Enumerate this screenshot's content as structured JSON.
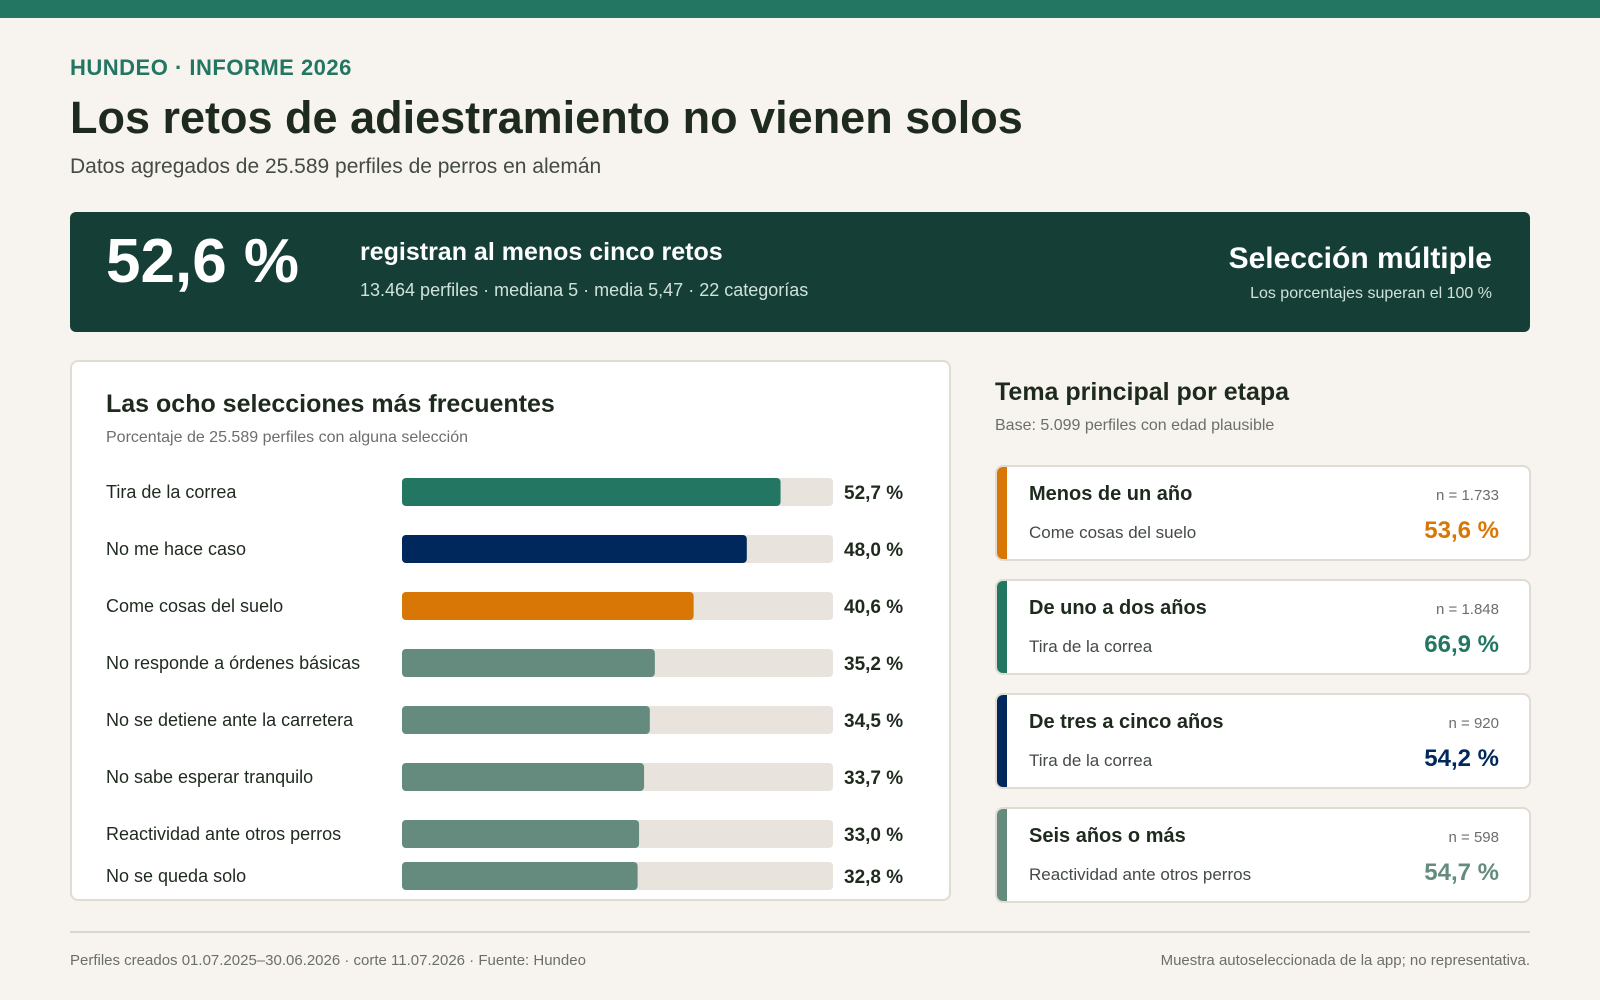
{
  "header": {
    "eyebrow": "HUNDEO · INFORME 2026",
    "title": "Los retos de adiestramiento no vienen solos",
    "subtitle": "Datos agregados de 25.589 perfiles de perros en alemán"
  },
  "banner": {
    "big_value": "52,6 %",
    "lead": "registran al menos cinco retos",
    "meta": "13.464 perfiles · mediana 5 · media 5,47 · 22 categorías",
    "right_title": "Selección múltiple",
    "right_sub": "Los porcentajes superan el 100 %"
  },
  "chart": {
    "title": "Las ocho selecciones más frecuentes",
    "subtitle": "Porcentaje de 25.589 perfiles con alguna selección"
  },
  "chart_data": {
    "type": "bar",
    "orientation": "horizontal",
    "title": "Las ocho selecciones más frecuentes",
    "subtitle": "Porcentaje de 25.589 perfiles con alguna selección",
    "categories": [
      "Tira de la correa",
      "No me hace caso",
      "Come cosas del suelo",
      "No responde a órdenes básicas",
      "No se detiene ante la carretera",
      "No sabe esperar tranquilo",
      "Reactividad ante otros perros",
      "No se queda solo"
    ],
    "values": [
      52.7,
      48.0,
      40.6,
      35.2,
      34.5,
      33.7,
      33.0,
      32.8
    ],
    "value_labels": [
      "52,7 %",
      "48,0 %",
      "40,6 %",
      "35,2 %",
      "34,5 %",
      "33,7 %",
      "33,0 %",
      "32,8 %"
    ],
    "colors": [
      "#227662",
      "#00285d",
      "#d97706",
      "#658b7e",
      "#658b7e",
      "#658b7e",
      "#658b7e",
      "#658b7e"
    ],
    "track_color": "#e8e3dc",
    "xlim": [
      0,
      60
    ],
    "grid": false,
    "legend": "none"
  },
  "stages": {
    "title": "Tema principal por etapa",
    "subtitle": "Base: 5.099 perfiles con edad plausible",
    "items": [
      {
        "name": "Menos de un año",
        "n": "n = 1.733",
        "topic": "Come cosas del suelo",
        "pct": "53,6 %",
        "color": "#d97706"
      },
      {
        "name": "De uno a dos años",
        "n": "n = 1.848",
        "topic": "Tira de la correa",
        "pct": "66,9 %",
        "color": "#227662"
      },
      {
        "name": "De tres a cinco años",
        "n": "n = 920",
        "topic": "Tira de la correa",
        "pct": "54,2 %",
        "color": "#00285d"
      },
      {
        "name": "Seis años o más",
        "n": "n = 598",
        "topic": "Reactividad ante otros perros",
        "pct": "54,7 %",
        "color": "#658b7e"
      }
    ]
  },
  "footer": {
    "left": "Perfiles creados 01.07.2025–30.06.2026 · corte 11.07.2026 · Fuente: Hundeo",
    "right": "Muestra autoseleccionada de la app; no representativa."
  }
}
